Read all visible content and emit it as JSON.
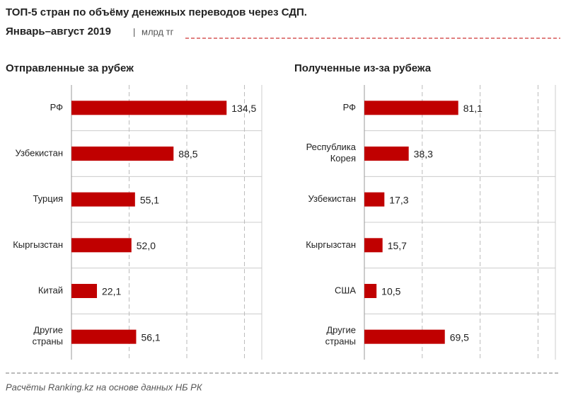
{
  "header": {
    "title": "ТОП-5 стран по объёму денежных переводов через СДП.",
    "subtitle": "Январь–август 2019",
    "unit": "млрд тг"
  },
  "chart_data": [
    {
      "type": "bar",
      "title": "Отправленные  за рубеж",
      "categories": [
        "РФ",
        "Узбекистан",
        "Турция",
        "Кыргызстан",
        "Китай",
        "Другие\nстраны"
      ],
      "values": [
        134.5,
        88.5,
        55.1,
        52.0,
        22.1,
        56.1
      ],
      "value_labels": [
        "134,5",
        "88,5",
        "55,1",
        "52,0",
        "22,1",
        "56,1"
      ],
      "color": "#c00000",
      "xlim": [
        0,
        165
      ],
      "xticks": [
        50,
        100,
        150
      ],
      "grid": true
    },
    {
      "type": "bar",
      "title": "Полученные  из-за рубежа",
      "categories": [
        "РФ",
        "Республика\nКорея",
        "Узбекистан",
        "Кыргызстан",
        "США",
        "Другие\nстраны"
      ],
      "values": [
        81.1,
        38.3,
        17.3,
        15.7,
        10.5,
        69.5
      ],
      "value_labels": [
        "81,1",
        "38,3",
        "17,3",
        "15,7",
        "10,5",
        "69,5"
      ],
      "color": "#c00000",
      "xlim": [
        0,
        165
      ],
      "xticks": [
        50,
        100,
        150
      ],
      "grid": true
    }
  ],
  "footer": {
    "source": "Расчёты Ranking.kz на основе данных НБ РК"
  }
}
